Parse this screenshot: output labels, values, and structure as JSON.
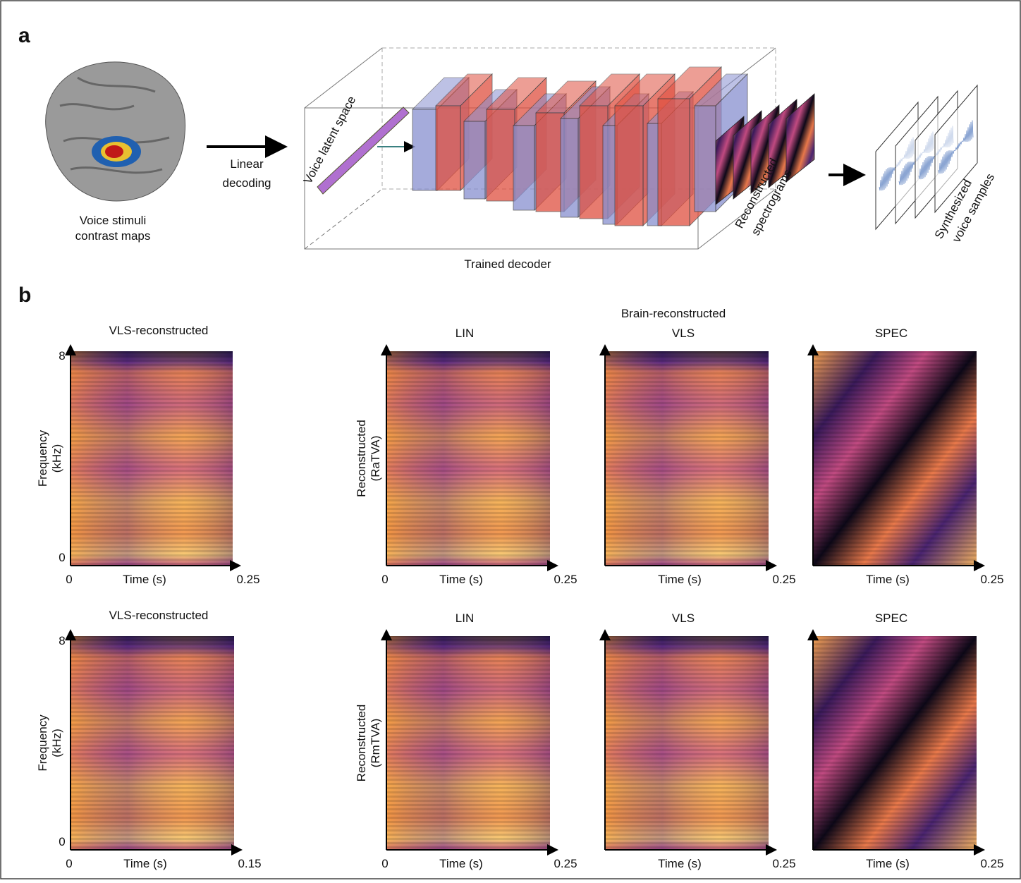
{
  "panel_a": {
    "label": "a",
    "brain_caption": [
      "Voice stimuli",
      "contrast maps"
    ],
    "arrow_label": [
      "Linear",
      "decoding"
    ],
    "latent_label": "Voice latent space",
    "decoder_label": "Trained decoder",
    "spectrogram_label": [
      "Reconstructed",
      "spectrograms"
    ],
    "synth_label": [
      "Synthesized",
      "voice samples"
    ]
  },
  "panel_b": {
    "label": "b",
    "group_title": "Brain-reconstructed",
    "rows": [
      {
        "reference": {
          "title": "VLS-reconstructed",
          "y_label": [
            "Frequency",
            "(kHz)"
          ],
          "y_top": 8,
          "y_bottom": 0,
          "x_left": 0,
          "x_label": "Time (s)",
          "x_right": 0.25
        },
        "row_label": [
          "Reconstructed",
          "(RaTVA)"
        ],
        "panels": [
          {
            "title": "LIN",
            "x_left": 0,
            "x_label": "Time (s)",
            "x_right": 0.25
          },
          {
            "title": "VLS",
            "x_label": "Time (s)",
            "x_right": 0.25
          },
          {
            "title": "SPEC",
            "x_label": "Time (s)",
            "x_right": 0.25
          }
        ]
      },
      {
        "reference": {
          "title": "VLS-reconstructed",
          "y_label": [
            "Frequency",
            "(kHz)"
          ],
          "y_top": 8,
          "y_bottom": 0,
          "x_left": 0,
          "x_label": "Time (s)",
          "x_right": 0.15
        },
        "row_label": [
          "Reconstructed",
          "(RmTVA)"
        ],
        "panels": [
          {
            "title": "LIN",
            "x_left": 0,
            "x_label": "Time (s)",
            "x_right": 0.25
          },
          {
            "title": "VLS",
            "x_label": "Time (s)",
            "x_right": 0.25
          },
          {
            "title": "SPEC",
            "x_label": "Time (s)",
            "x_right": 0.25
          }
        ]
      }
    ]
  }
}
